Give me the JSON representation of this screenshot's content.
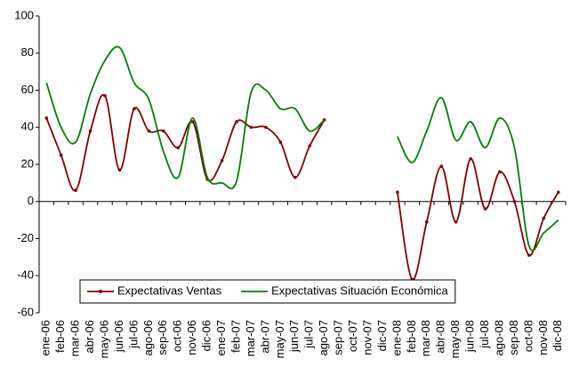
{
  "chart_data": {
    "type": "line",
    "categories": [
      "ene-06",
      "feb-06",
      "mar-06",
      "abr-06",
      "may-06",
      "jun-06",
      "jul-06",
      "ago-06",
      "sep-06",
      "oct-06",
      "nov-06",
      "dic-06",
      "ene-07",
      "feb-07",
      "mar-07",
      "abr-07",
      "may-07",
      "jun-07",
      "jul-07",
      "ago-07",
      "sep-07",
      "oct-07",
      "nov-07",
      "dic-07",
      "ene-08",
      "feb-08",
      "mar-08",
      "abr-08",
      "may-08",
      "jun-08",
      "jul-08",
      "ago-08",
      "sep-08",
      "oct-08",
      "nov-08",
      "dic-08"
    ],
    "series": [
      {
        "name": "Expectativas Ventas",
        "color": "#800000",
        "markers": true,
        "values": [
          45,
          25,
          6,
          38,
          57,
          17,
          50,
          38,
          38,
          29,
          43,
          12,
          22,
          43,
          40,
          40,
          32,
          13,
          30,
          44,
          null,
          null,
          null,
          null,
          5,
          -42,
          -11,
          19,
          -11,
          23,
          -4,
          16,
          0,
          -29,
          -9,
          5
        ]
      },
      {
        "name": "Expectativas Situación Económica",
        "color": "#008000",
        "markers": false,
        "values": [
          64,
          40,
          32,
          58,
          76,
          83,
          64,
          55,
          27,
          13,
          45,
          13,
          10,
          11,
          59,
          60,
          50,
          50,
          38,
          44,
          null,
          null,
          null,
          null,
          35,
          21,
          38,
          56,
          33,
          43,
          29,
          45,
          29,
          -24,
          -17,
          -10
        ]
      }
    ],
    "ylim": [
      -60,
      100
    ],
    "yticks": [
      -60,
      -40,
      -20,
      0,
      20,
      40,
      60,
      80,
      100
    ],
    "grid": false,
    "legend": "lower left",
    "smooth": true
  }
}
